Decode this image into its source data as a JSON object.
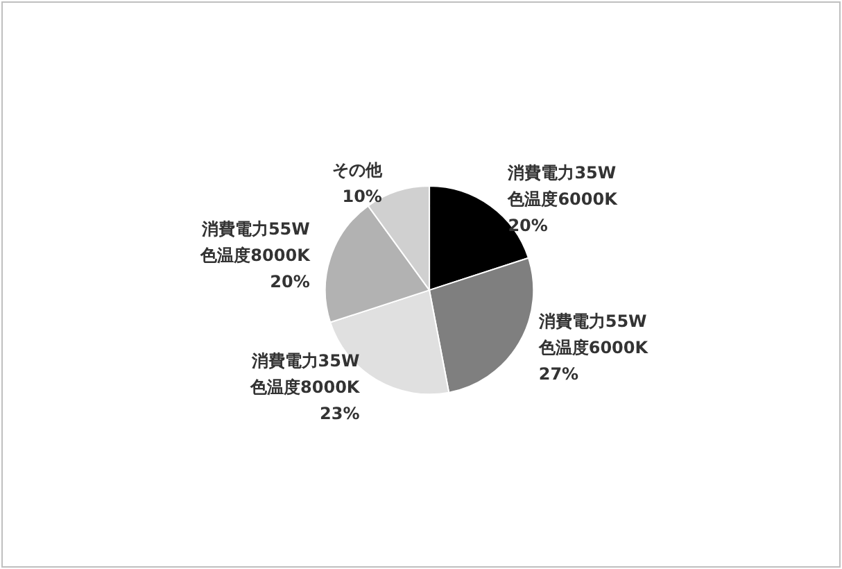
{
  "chart_data": {
    "type": "pie",
    "categories": [
      "消費電力35W\n色温度6000K",
      "消費電力55W\n色温度6000K",
      "消費電力35W\n色温度8000K",
      "消費電力55W\n色温度8000K",
      "その他"
    ],
    "values": [
      20,
      27,
      23,
      20,
      10
    ],
    "value_labels": [
      "20%",
      "27%",
      "23%",
      "20%",
      "10%"
    ],
    "colors": [
      "#000000",
      "#7f7f7f",
      "#e0e0e0",
      "#b2b2b2",
      "#d0d0d0"
    ],
    "legend": false
  }
}
